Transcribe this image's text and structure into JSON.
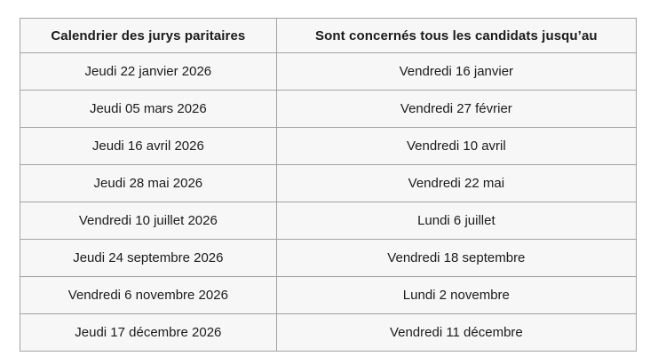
{
  "table": {
    "headers": [
      "Calendrier des jurys paritaires",
      "Sont concernés tous les candidats jusqu’au"
    ],
    "rows": [
      [
        "Jeudi 22 janvier 2026",
        "Vendredi 16 janvier"
      ],
      [
        "Jeudi 05 mars 2026",
        "Vendredi 27 février"
      ],
      [
        "Jeudi 16 avril 2026",
        "Vendredi 10 avril"
      ],
      [
        "Jeudi 28 mai 2026",
        "Vendredi 22 mai"
      ],
      [
        "Vendredi 10 juillet 2026",
        "Lundi 6 juillet"
      ],
      [
        "Jeudi 24 septembre 2026",
        "Vendredi 18 septembre"
      ],
      [
        "Vendredi 6 novembre 2026",
        "Lundi 2 novembre"
      ],
      [
        "Jeudi 17 décembre 2026",
        "Vendredi 11 décembre"
      ]
    ],
    "colors": {
      "cell_background": "#f7f7f7",
      "border": "#a3a3a3",
      "text": "#1b1b1b",
      "page_background": "#ffffff"
    }
  }
}
